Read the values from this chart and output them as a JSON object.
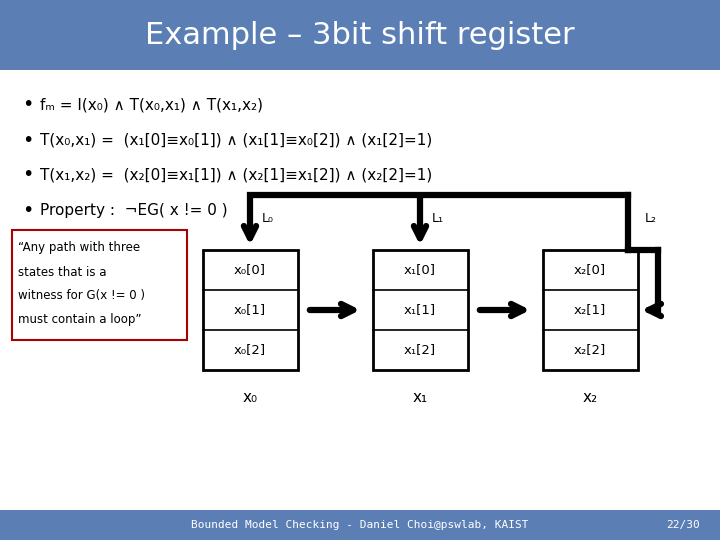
{
  "title": "Example – 3bit shift register",
  "title_bg": "#5b7fb5",
  "title_color": "#ffffff",
  "content_bg": "#f2f2f2",
  "footer_text": "Bounded Model Checking - Daniel Choi@pswlab, KAIST",
  "footer_page": "22/30",
  "footer_bg": "#5b7fb5",
  "footer_color": "#ffffff",
  "bullet1": "fₘ = I(x₀) ∧ T(x₀,x₁) ∧ T(x₁,x₂)",
  "bullet2": "T(x₀,x₁) =  (x₁[0]≡x₀[1]) ∧ (x₁[1]≡x₀[2]) ∧ (x₁[2]=1)",
  "bullet3": "T(x₁,x₂) =  (x₂[0]≡x₁[1]) ∧ (x₂[1]≡x₁[2]) ∧ (x₂[2]=1)",
  "bullet4": "Property :  ¬EG( x != 0 )",
  "note_line1": "“Any path with three",
  "note_line2": "states that is a",
  "note_line3": "witness for G(x != 0 )",
  "note_line4": "must contain a loop”",
  "note_border": "#aa0000",
  "reg0_rows": [
    "x₀[0]",
    "x₀[1]",
    "x₀[2]"
  ],
  "reg0_label": "x₀",
  "reg0_L": "L₀",
  "reg1_rows": [
    "x₁[0]",
    "x₁[1]",
    "x₁[2]"
  ],
  "reg1_label": "x₁",
  "reg1_L": "L₁",
  "reg2_rows": [
    "x₂[0]",
    "x₂[1]",
    "x₂[2]"
  ],
  "reg2_label": "x₂",
  "reg2_L": "L₂"
}
